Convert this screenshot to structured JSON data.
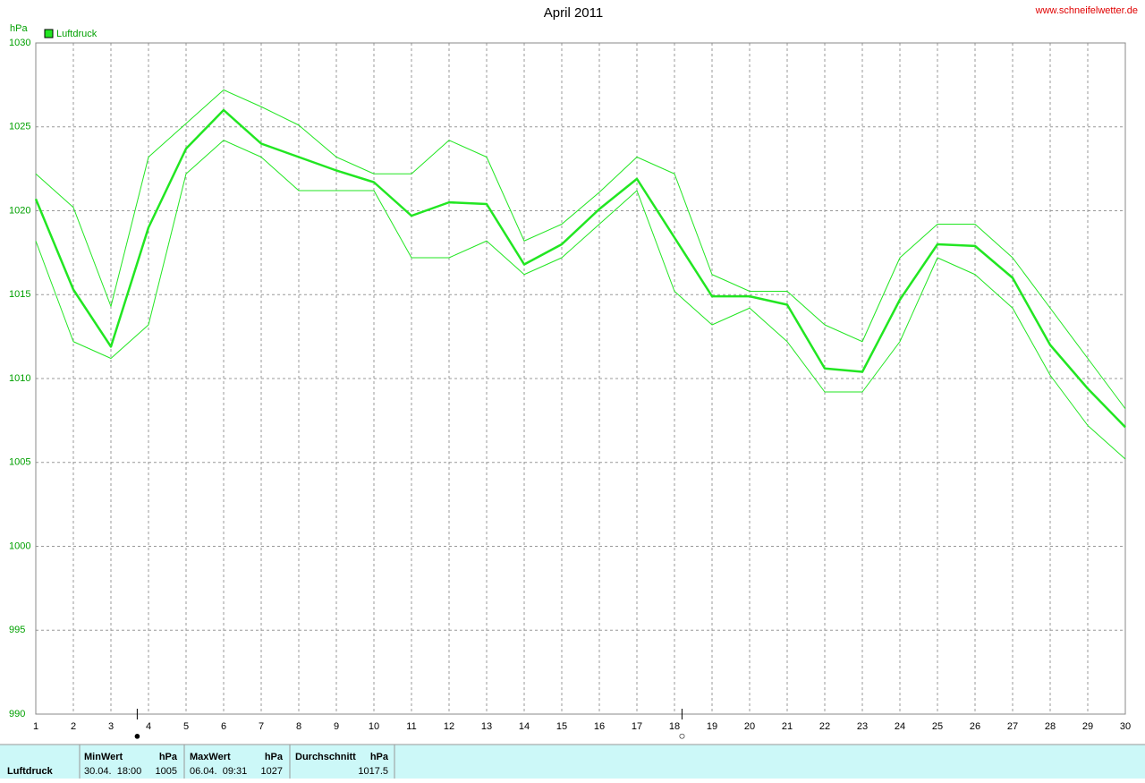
{
  "chart_data": {
    "type": "line",
    "title": "April 2011",
    "watermark": "www.schneifelwetter.de",
    "y_unit": "hPa",
    "x": [
      1,
      2,
      3,
      4,
      5,
      6,
      7,
      8,
      9,
      10,
      11,
      12,
      13,
      14,
      15,
      16,
      17,
      18,
      19,
      20,
      21,
      22,
      23,
      24,
      25,
      26,
      27,
      28,
      29,
      30
    ],
    "xlim": [
      1,
      30
    ],
    "xticks": [
      1,
      2,
      3,
      4,
      5,
      6,
      7,
      8,
      9,
      10,
      11,
      12,
      13,
      14,
      15,
      16,
      17,
      18,
      19,
      20,
      21,
      22,
      23,
      24,
      25,
      26,
      27,
      28,
      29,
      30
    ],
    "ylim": [
      990,
      1030
    ],
    "yticks": [
      990,
      995,
      1000,
      1005,
      1010,
      1015,
      1020,
      1025,
      1030
    ],
    "grid": true,
    "series": [
      {
        "name": "Luftdruck",
        "color": "#22e622",
        "width": 2.5,
        "values": [
          1020.7,
          1015.3,
          1011.9,
          1019.0,
          1023.7,
          1026.0,
          1024.0,
          1023.2,
          1022.4,
          1021.7,
          1019.7,
          1020.5,
          1020.4,
          1016.8,
          1018.0,
          1020.1,
          1021.9,
          1018.4,
          1014.9,
          1014.9,
          1014.4,
          1010.6,
          1010.4,
          1014.7,
          1018.0,
          1017.9,
          1016.0,
          1012.0,
          1009.4,
          1007.1
        ]
      },
      {
        "color": "#22e622",
        "width": 1,
        "values": [
          1022.2,
          1020.2,
          1014.3,
          1023.2,
          1025.2,
          1027.2,
          1026.2,
          1025.1,
          1023.2,
          1022.2,
          1022.2,
          1024.2,
          1023.2,
          1018.2,
          1019.2,
          1021.1,
          1023.2,
          1022.2,
          1016.2,
          1015.2,
          1015.2,
          1013.2,
          1012.2,
          1017.2,
          1019.2,
          1019.2,
          1017.2,
          1014.2,
          1011.2,
          1008.2
        ]
      },
      {
        "color": "#22e622",
        "width": 1,
        "values": [
          1018.2,
          1012.2,
          1011.2,
          1013.2,
          1022.2,
          1024.2,
          1023.2,
          1021.2,
          1021.2,
          1021.2,
          1017.2,
          1017.2,
          1018.2,
          1016.2,
          1017.2,
          1019.2,
          1021.2,
          1015.2,
          1013.2,
          1014.2,
          1012.2,
          1009.2,
          1009.2,
          1012.2,
          1017.2,
          1016.2,
          1014.2,
          1010.2,
          1007.2,
          1005.2
        ]
      }
    ],
    "moon_phases": [
      {
        "x": 3.7,
        "symbol": "●"
      },
      {
        "x": 18.2,
        "symbol": "○"
      }
    ]
  },
  "stats_table": {
    "row_label": "Luftdruck",
    "columns": [
      {
        "header": "MinWert",
        "unit": "hPa",
        "time": "30.04.  18:00",
        "value": 1005
      },
      {
        "header": "MaxWert",
        "unit": "hPa",
        "time": "06.04.  09:31",
        "value": 1027
      },
      {
        "header": "Durchschnitt",
        "unit": "hPa",
        "value": 1017.5
      }
    ]
  }
}
